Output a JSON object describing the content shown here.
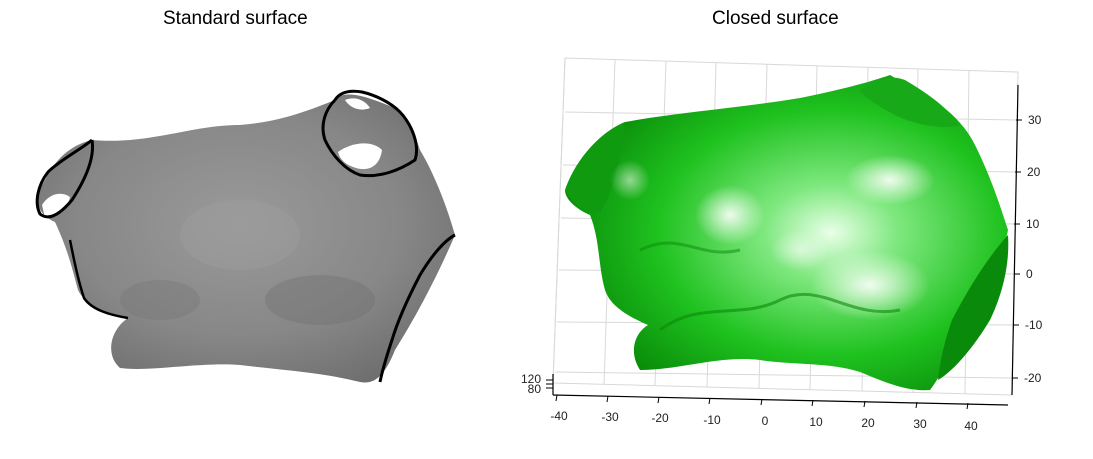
{
  "panels": [
    {
      "title": "Standard surface",
      "surface_color": "#808080",
      "rim_color": "#000000"
    },
    {
      "title": "Closed surface",
      "surface_color": "#1fb81f"
    }
  ],
  "axes": {
    "x_ticks": [
      "-40",
      "-30",
      "-20",
      "-10",
      "0",
      "10",
      "20",
      "30",
      "40"
    ],
    "y_ticks": [
      "30",
      "20",
      "10",
      "0",
      "-10",
      "-20"
    ],
    "z_ticks": [
      "120",
      "80"
    ]
  }
}
